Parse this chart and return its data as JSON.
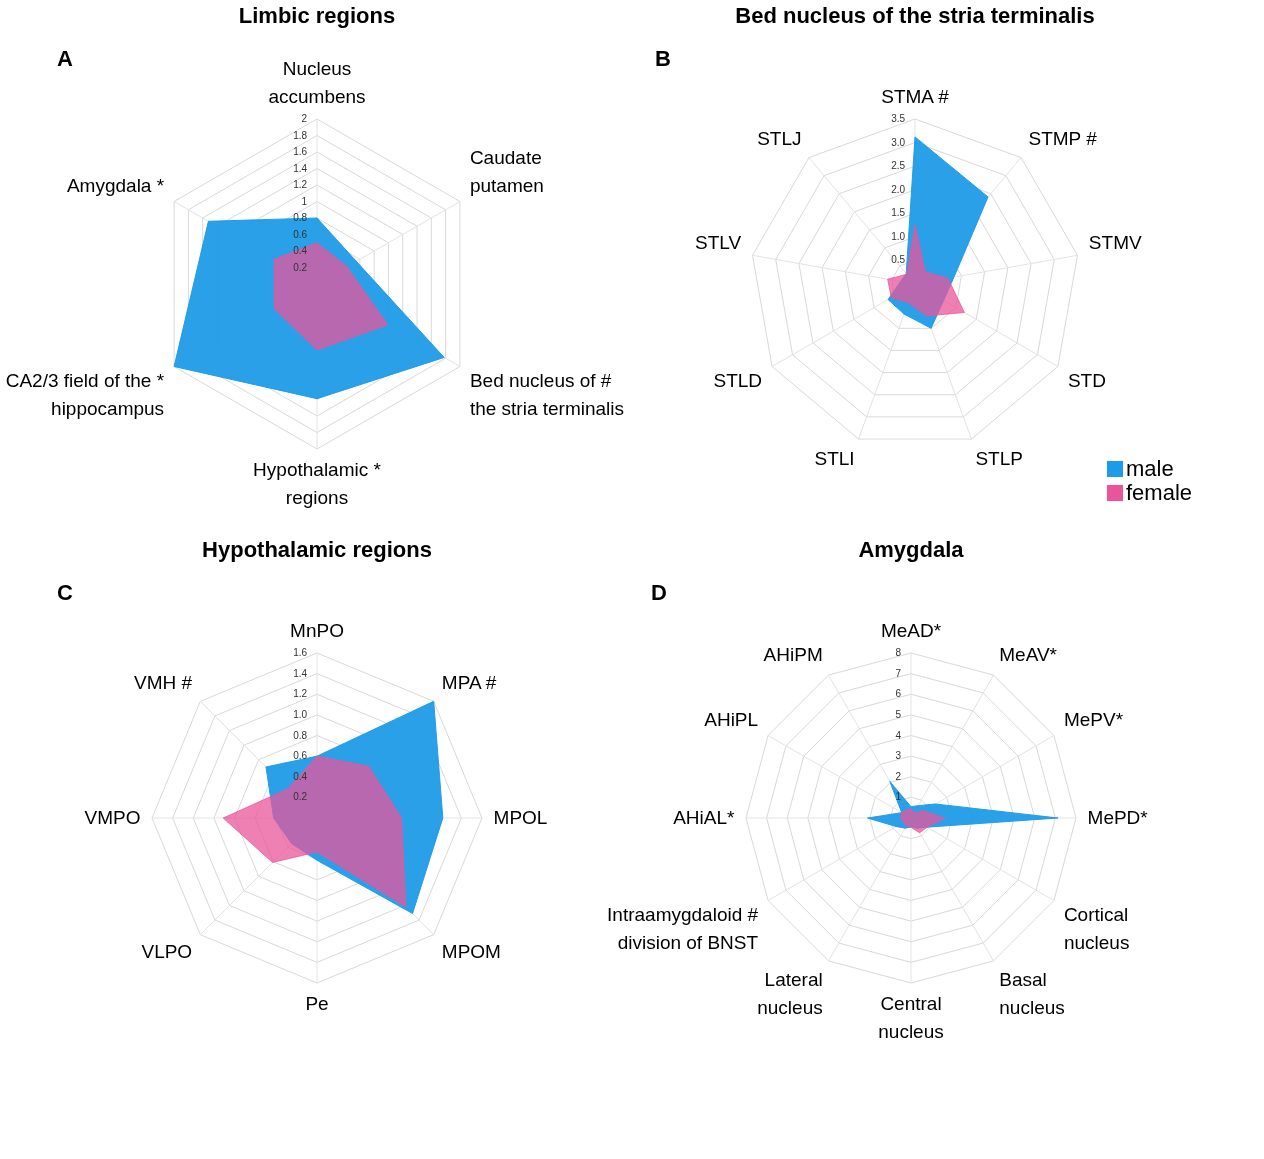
{
  "chart_data": [
    {
      "type": "radar",
      "title": "Limbic regions",
      "annotations": [
        "A"
      ],
      "categories": [
        "Nucleus\naccumbens",
        "Caudate\nputamen",
        "Bed nucleus of #\nthe stria terminalis",
        "Hypothalamic *\nregions",
        "CA2/3 field of the *\nhippocampus",
        "Amygdala *"
      ],
      "series": [
        {
          "color": "#1e9be6",
          "values": [
            0.8,
            0.55,
            1.78,
            1.39,
            2.0,
            1.52
          ]
        },
        {
          "color": "#e8559b",
          "values": [
            0.5,
            0.42,
            0.99,
            0.8,
            0.6,
            0.6
          ]
        }
      ],
      "ylim": [
        0,
        2
      ],
      "yticks": [
        0.2,
        0.4,
        0.6,
        0.8,
        1,
        1.2,
        1.4,
        1.6,
        1.8,
        2
      ],
      "grid": true,
      "legend": false
    },
    {
      "type": "radar",
      "title": "Bed nucleus of the stria terminalis",
      "annotations": [
        "B"
      ],
      "categories": [
        "STMA #",
        "STMP #",
        "STMV",
        "STD",
        "STLP",
        "STLI",
        "STLD",
        "STLV",
        "STLJ"
      ],
      "series": [
        {
          "name": "male",
          "color": "#1e9be6",
          "values": [
            3.12,
            2.41,
            0.84,
            0.7,
            1.0,
            0.68,
            0.66,
            0.31,
            0.29
          ]
        },
        {
          "name": "female",
          "color": "#e8559b",
          "values": [
            1.26,
            0.34,
            0.71,
            1.21,
            0.72,
            0.42,
            0.58,
            0.59,
            0.27
          ]
        }
      ],
      "ylim": [
        0,
        3.5
      ],
      "yticks": [
        0.5,
        {
          "value": 1,
          "label": "1.0"
        },
        1.5,
        {
          "value": 2,
          "label": "2.0"
        },
        2.5,
        {
          "value": 3,
          "label": "3.0"
        },
        3.5
      ],
      "grid": true,
      "legend": "bottom right"
    },
    {
      "type": "radar",
      "title": "Hypothalamic regions",
      "annotations": [
        "C"
      ],
      "categories": [
        "MnPO",
        "MPA #",
        "MPOL",
        "MPOM",
        "Pe",
        "VLPO",
        "VMPO",
        "VMH #"
      ],
      "series": [
        {
          "color": "#1e9be6",
          "values": [
            0.6,
            1.6,
            1.22,
            1.31,
            0.41,
            0.35,
            0.42,
            0.7
          ]
        },
        {
          "color": "#e8559b",
          "values": [
            0.6,
            0.71,
            0.82,
            1.22,
            0.33,
            0.61,
            0.91,
            0.4
          ]
        }
      ],
      "ylim": [
        0,
        1.6
      ],
      "yticks": [
        0.2,
        0.4,
        0.6,
        0.8,
        {
          "value": 1,
          "label": "1.0"
        },
        1.2,
        1.4,
        1.6
      ],
      "grid": true,
      "legend": false
    },
    {
      "type": "radar",
      "title": "Amygdala",
      "annotations": [
        "D"
      ],
      "categories": [
        "MeAD*",
        "MeAV*",
        "MePV*",
        "MePD*",
        "Cortical\nnucleus",
        "Basal\nnucleus",
        "Central\nnucleus",
        "Lateral\nnucleus",
        "Intraamygdaloid #\ndivision of BNST",
        "AHiAL*",
        "AHiPL",
        "AHiPM"
      ],
      "series": [
        {
          "color": "#1e9be6",
          "values": [
            0.55,
            0.69,
            1.36,
            7.13,
            0.89,
            0.57,
            0.44,
            0.57,
            0.83,
            2.11,
            0.52,
            2.05
          ]
        },
        {
          "color": "#e8559b",
          "values": [
            0.45,
            0.3,
            0.7,
            1.65,
            0.9,
            0.83,
            0.45,
            0.45,
            0.41,
            0.51,
            0.54,
            0.45
          ]
        }
      ],
      "ylim": [
        0,
        8
      ],
      "yticks": [
        1,
        2,
        3,
        4,
        5,
        6,
        7,
        8
      ],
      "grid": true,
      "legend": false
    }
  ]
}
